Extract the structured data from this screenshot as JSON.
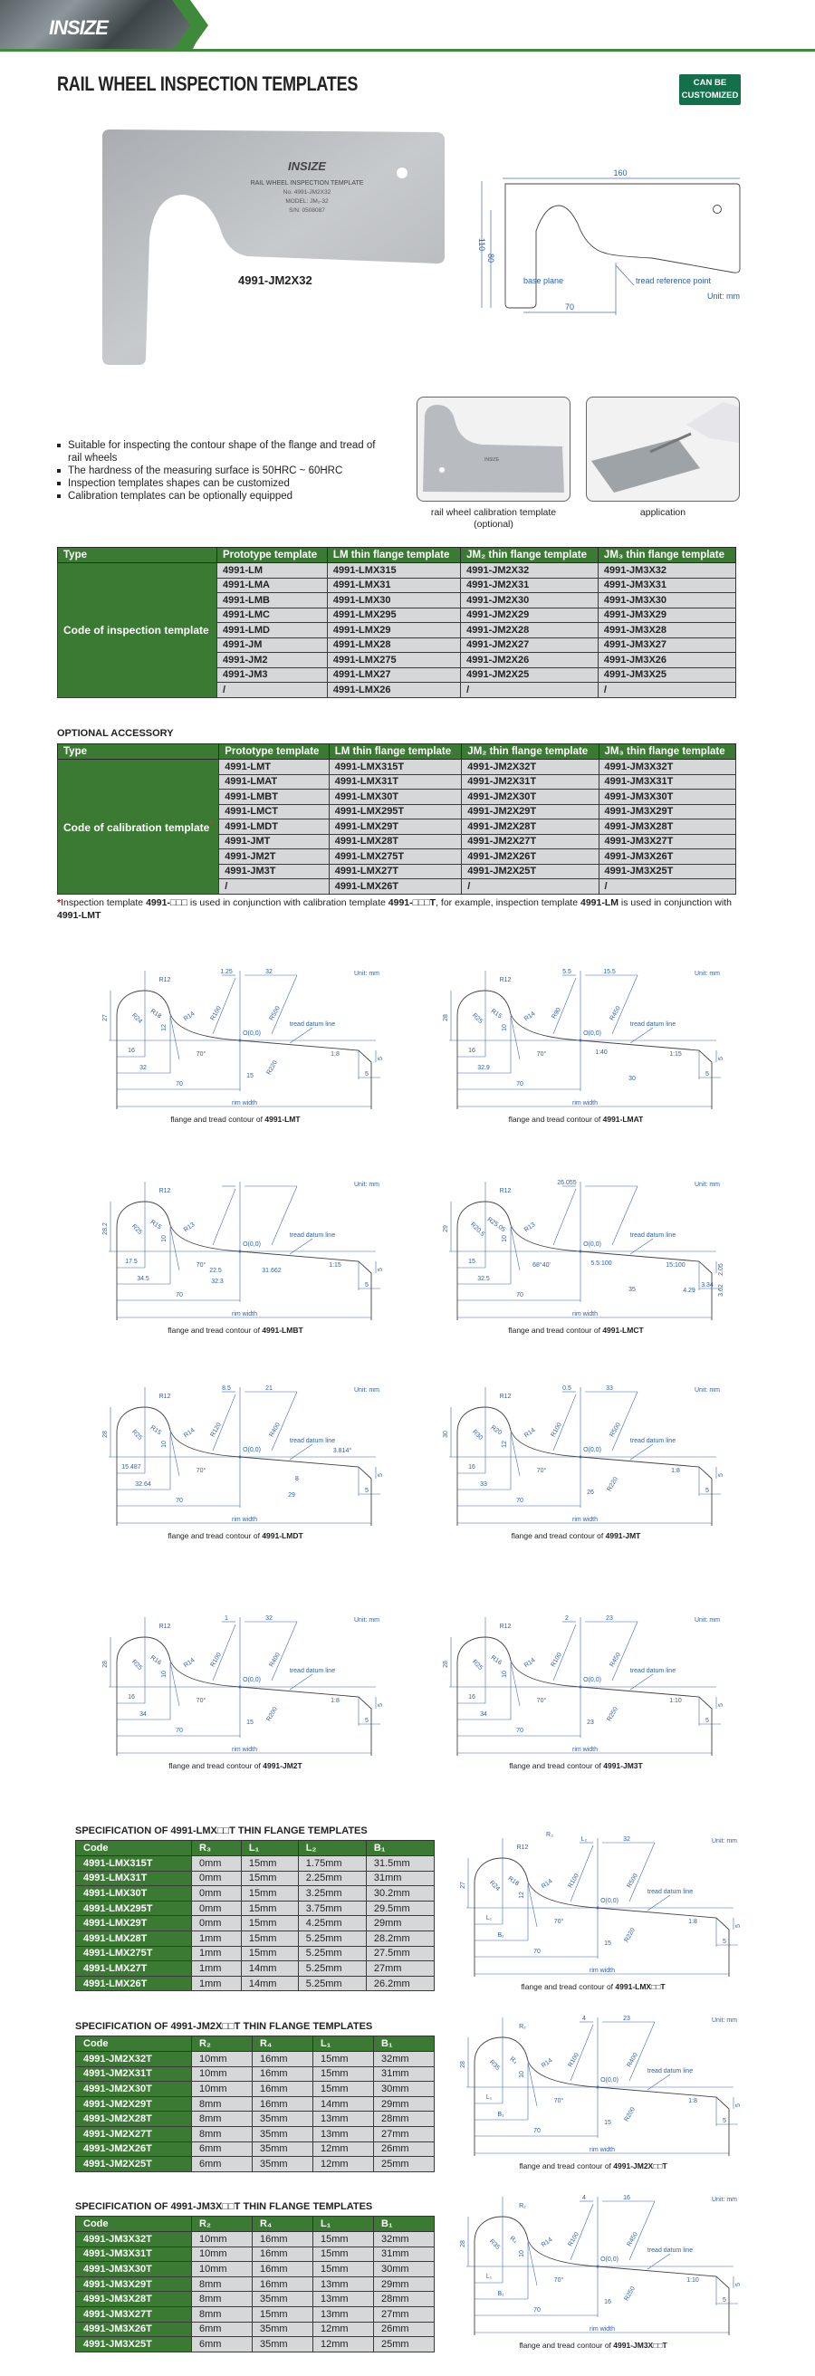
{
  "header": {
    "logo": "INSIZE",
    "accent": "#3f8a3a"
  },
  "title": "RAIL WHEEL INSPECTION TEMPLATES",
  "badge": {
    "line1": "CAN BE",
    "line2": "CUSTOMIZED",
    "color": "#13704a"
  },
  "product": {
    "model_label": "4991-JM2X32",
    "plate": {
      "logo": "INSIZE",
      "name": "RAIL WHEEL INSPECTION TEMPLATE",
      "no": "No. 4991-JM2X32",
      "model": "MODEL: JM₂-32",
      "sn": "S/N: 0508087"
    }
  },
  "drawing": {
    "width": "160",
    "height": "110",
    "inner_height": "80",
    "base": "70",
    "base_plane": "base plane",
    "tread_ref": "tread reference point",
    "unit": "Unit: mm"
  },
  "features": [
    "Suitable for inspecting the contour shape of the flange and tread of rail wheels",
    "The hardness of the measuring surface is 50HRC ~ 60HRC",
    "Inspection templates shapes can be customized",
    "Calibration templates can be optionally equipped"
  ],
  "photos": [
    {
      "caption": "rail wheel calibration template",
      "note": "(optional)"
    },
    {
      "caption": "application",
      "note": ""
    }
  ],
  "inspection_table": {
    "headers": [
      "Type",
      "Prototype template",
      "LM thin flange template",
      "JM₂ thin flange template",
      "JM₃ thin flange template"
    ],
    "type_label": "Code of inspection template",
    "rows": [
      [
        "4991-LM",
        "4991-LMX315",
        "4991-JM2X32",
        "4991-JM3X32"
      ],
      [
        "4991-LMA",
        "4991-LMX31",
        "4991-JM2X31",
        "4991-JM3X31"
      ],
      [
        "4991-LMB",
        "4991-LMX30",
        "4991-JM2X30",
        "4991-JM3X30"
      ],
      [
        "4991-LMC",
        "4991-LMX295",
        "4991-JM2X29",
        "4991-JM3X29"
      ],
      [
        "4991-LMD",
        "4991-LMX29",
        "4991-JM2X28",
        "4991-JM3X28"
      ],
      [
        "4991-JM",
        "4991-LMX28",
        "4991-JM2X27",
        "4991-JM3X27"
      ],
      [
        "4991-JM2",
        "4991-LMX275",
        "4991-JM2X26",
        "4991-JM3X26"
      ],
      [
        "4991-JM3",
        "4991-LMX27",
        "4991-JM2X25",
        "4991-JM3X25"
      ],
      [
        "/",
        "4991-LMX26",
        "/",
        "/"
      ]
    ]
  },
  "accessory": {
    "title": "OPTIONAL ACCESSORY",
    "headers": [
      "Type",
      "Prototype template",
      "LM thin flange template",
      "JM₂ thin flange template",
      "JM₃ thin flange template"
    ],
    "type_label": "Code of calibration template",
    "type_mark": "*",
    "rows": [
      [
        "4991-LMT",
        "4991-LMX315T",
        "4991-JM2X32T",
        "4991-JM3X32T"
      ],
      [
        "4991-LMAT",
        "4991-LMX31T",
        "4991-JM2X31T",
        "4991-JM3X31T"
      ],
      [
        "4991-LMBT",
        "4991-LMX30T",
        "4991-JM2X30T",
        "4991-JM3X30T"
      ],
      [
        "4991-LMCT",
        "4991-LMX295T",
        "4991-JM2X29T",
        "4991-JM3X29T"
      ],
      [
        "4991-LMDT",
        "4991-LMX29T",
        "4991-JM2X28T",
        "4991-JM3X28T"
      ],
      [
        "4991-JMT",
        "4991-LMX28T",
        "4991-JM2X27T",
        "4991-JM3X27T"
      ],
      [
        "4991-JM2T",
        "4991-LMX275T",
        "4991-JM2X26T",
        "4991-JM3X26T"
      ],
      [
        "4991-JM3T",
        "4991-LMX27T",
        "4991-JM2X25T",
        "4991-JM3X25T"
      ],
      [
        "/",
        "4991-LMX26T",
        "/",
        "/"
      ]
    ]
  },
  "note": {
    "star": "*",
    "segments": [
      {
        "t": "Inspection template ",
        "b": false
      },
      {
        "t": "4991-□□□",
        "b": true
      },
      {
        "t": " is used in conjunction with calibration template ",
        "b": false
      },
      {
        "t": "4991-□□□T",
        "b": true
      },
      {
        "t": ", for example, inspection template ",
        "b": false
      },
      {
        "t": "4991-LM",
        "b": true
      },
      {
        "t": " is used in conjunction with ",
        "b": false
      },
      {
        "t": "4991-LMT",
        "b": true
      }
    ]
  },
  "diagram_common": {
    "caption_prefix": "flange and tread contour of ",
    "unit": "Unit: mm",
    "datum": "tread datum line",
    "origin": "O(0,0)",
    "rim": "rim width"
  },
  "diagrams": [
    {
      "model": "4991-LMT",
      "labels": {
        "height": "27",
        "r_top": "R12",
        "r_left": "R24",
        "r_mid": "R18",
        "r_throat": "R14",
        "h_flange": "12",
        "angle": "70°",
        "d_left1": "16",
        "d_left2": "32",
        "d70": "70",
        "top_left": "1.25",
        "top_right": "32",
        "r_big_left": "R100",
        "r_big_right": "R500",
        "r_under": "R220",
        "d_under": "15",
        "slope": "1:8",
        "chamfer_h": "5",
        "chamfer_w": "5"
      }
    },
    {
      "model": "4991-LMAT",
      "labels": {
        "height": "28",
        "r_top": "R12",
        "r_left": "R25",
        "r_mid": "R15",
        "r_throat": "R14",
        "h_flange": "10",
        "angle": "70°",
        "d_left1": "16",
        "d_left2": "32.9",
        "d70": "70",
        "top_left": "5.5",
        "top_right": "15.5",
        "r_big_left": "R90",
        "r_big_right": "R450",
        "slope2": "1:40",
        "d_mid": "30",
        "slope": "1:15",
        "chamfer_h": "5",
        "chamfer_w": "5"
      }
    },
    {
      "model": "4991-LMBT",
      "labels": {
        "height": "28.2",
        "r_top": "R12",
        "r_left": "R25",
        "r_mid": "R15",
        "r_throat": "R13",
        "h_flange": "10",
        "angle": "70°",
        "d_left1": "17.5",
        "d_left2": "34.5",
        "d70": "70",
        "d_a": "22.5",
        "d_b": "32.3",
        "d_c": "31.662",
        "slope": "1:15",
        "chamfer_h": "5",
        "chamfer_w": "5"
      }
    },
    {
      "model": "4991-LMCT",
      "labels": {
        "height": "29",
        "r_top": "R12",
        "r_left": "R20.5",
        "r_mid": "R25.05",
        "r_throat": "R13",
        "h_flange": "10",
        "angle": "68°40'",
        "d_left1": "15",
        "d_left2": "32.5",
        "d70": "70",
        "top_left": "26.055",
        "slope2": "5.5:100",
        "slope": "15:100",
        "d_mid": "35",
        "chamfer_h": "2.05",
        "chamfer_h2": "3.62",
        "chamfer_w": "3.34",
        "chamfer_w2": "4.29"
      }
    },
    {
      "model": "4991-LMDT",
      "labels": {
        "height": "28",
        "r_top": "R12",
        "r_left": "R25",
        "r_mid": "R15",
        "r_throat": "R14",
        "h_flange": "10",
        "angle": "70°",
        "d_left1": "15.487",
        "d_left2": "32.64",
        "d70": "70",
        "top_left": "8.5",
        "top_right": "21",
        "r_big_left": "R120",
        "r_big_right": "R400",
        "d_small": "8",
        "d_mid": "29",
        "angle2": "3.814°",
        "chamfer_h": "5",
        "chamfer_w": "5"
      }
    },
    {
      "model": "4991-JMT",
      "labels": {
        "height": "30",
        "r_top": "R12",
        "r_left": "R30",
        "r_mid": "R20",
        "r_throat": "R14",
        "h_flange": "12",
        "angle": "70°",
        "d_left1": "16",
        "d_left2": "33",
        "d70": "70",
        "top_left": "0.5",
        "top_right": "33",
        "r_big_left": "R100",
        "r_big_right": "R500",
        "r_under": "R220",
        "d_under": "26",
        "slope": "1:8",
        "chamfer_h": "5",
        "chamfer_w": "5"
      }
    },
    {
      "model": "4991-JM2T",
      "labels": {
        "height": "28",
        "r_top": "R12",
        "r_left": "R25",
        "r_mid": "R16",
        "r_throat": "R14",
        "h_flange": "10",
        "angle": "70°",
        "d_left1": "16",
        "d_left2": "34",
        "d70": "70",
        "top_left": "1",
        "top_right": "32",
        "r_big_left": "R100",
        "r_big_right": "R400",
        "r_under": "R200",
        "d_under": "15",
        "slope": "1:8",
        "chamfer_h": "5",
        "chamfer_w": "5"
      }
    },
    {
      "model": "4991-JM3T",
      "labels": {
        "height": "28",
        "r_top": "R12",
        "r_left": "R25",
        "r_mid": "R16",
        "r_throat": "R14",
        "h_flange": "10",
        "angle": "70°",
        "d_left1": "16",
        "d_left2": "34",
        "d70": "70",
        "top_left": "2",
        "top_right": "23",
        "r_big_left": "R100",
        "r_big_right": "R450",
        "r_under": "R250",
        "d_under": "23",
        "slope": "1:10",
        "chamfer_h": "5",
        "chamfer_w": "5"
      }
    }
  ],
  "specs": [
    {
      "title": "SPECIFICATION  OF 4991-LMX□□T THIN FLANGE TEMPLATES",
      "headers": [
        "Code",
        "R₃",
        "L₁",
        "L₂",
        "B₁"
      ],
      "rows": [
        [
          "4991-LMX315T",
          "0mm",
          "15mm",
          "1.75mm",
          "31.5mm"
        ],
        [
          "4991-LMX31T",
          "0mm",
          "15mm",
          "2.25mm",
          "31mm"
        ],
        [
          "4991-LMX30T",
          "0mm",
          "15mm",
          "3.25mm",
          "30.2mm"
        ],
        [
          "4991-LMX295T",
          "0mm",
          "15mm",
          "3.75mm",
          "29.5mm"
        ],
        [
          "4991-LMX29T",
          "0mm",
          "15mm",
          "4.25mm",
          "29mm"
        ],
        [
          "4991-LMX28T",
          "1mm",
          "15mm",
          "5.25mm",
          "28.2mm"
        ],
        [
          "4991-LMX275T",
          "1mm",
          "15mm",
          "5.25mm",
          "27.5mm"
        ],
        [
          "4991-LMX27T",
          "1mm",
          "14mm",
          "5.25mm",
          "27mm"
        ],
        [
          "4991-LMX26T",
          "1mm",
          "14mm",
          "5.25mm",
          "26.2mm"
        ]
      ],
      "diagram": {
        "model": "4991-LMX□□T",
        "labels": {
          "height": "27",
          "r_top": "R12",
          "r_top2": "R₃",
          "r_left": "R24",
          "r_mid": "R18",
          "r_throat": "R14",
          "h_flange": "12",
          "angle": "70°",
          "d_left1": "L₁",
          "d_left2": "B₁",
          "d70": "70",
          "top_left": "L₂",
          "top_right": "32",
          "r_big_left": "R100",
          "r_big_right": "R500",
          "r_under": "R220",
          "d_under": "15",
          "slope": "1:8",
          "chamfer_h": "5",
          "chamfer_w": "5"
        }
      }
    },
    {
      "title": "SPECIFICATION  OF 4991-JM2X□□T THIN FLANGE TEMPLATES",
      "headers": [
        "Code",
        "R₂",
        "R₄",
        "L₁",
        "B₁"
      ],
      "rows": [
        [
          "4991-JM2X32T",
          "10mm",
          "16mm",
          "15mm",
          "32mm"
        ],
        [
          "4991-JM2X31T",
          "10mm",
          "16mm",
          "15mm",
          "31mm"
        ],
        [
          "4991-JM2X30T",
          "10mm",
          "16mm",
          "15mm",
          "30mm"
        ],
        [
          "4991-JM2X29T",
          "8mm",
          "16mm",
          "14mm",
          "29mm"
        ],
        [
          "4991-JM2X28T",
          "8mm",
          "35mm",
          "13mm",
          "28mm"
        ],
        [
          "4991-JM2X27T",
          "8mm",
          "35mm",
          "13mm",
          "27mm"
        ],
        [
          "4991-JM2X26T",
          "6mm",
          "35mm",
          "12mm",
          "26mm"
        ],
        [
          "4991-JM2X25T",
          "6mm",
          "35mm",
          "12mm",
          "25mm"
        ]
      ],
      "diagram": {
        "model": "4991-JM2X□□T",
        "labels": {
          "height": "28",
          "r_top": "R₂",
          "r_left": "R35",
          "r_mid": "R₄",
          "r_throat": "R14",
          "h_flange": "10",
          "angle": "70°",
          "d_left1": "L₁",
          "d_left2": "B₁",
          "d70": "70",
          "top_left": "4",
          "top_right": "23",
          "r_big_left": "R100",
          "r_big_right": "R400",
          "r_under": "R200",
          "d_under": "15",
          "slope": "1:8",
          "chamfer_h": "5",
          "chamfer_w": "5"
        }
      }
    },
    {
      "title": "SPECIFICATION OF 4991-JM3X□□T THIN FLANGE TEMPLATES",
      "headers": [
        "Code",
        "R₂",
        "R₄",
        "L₁",
        "B₁"
      ],
      "rows": [
        [
          "4991-JM3X32T",
          "10mm",
          "16mm",
          "15mm",
          "32mm"
        ],
        [
          "4991-JM3X31T",
          "10mm",
          "16mm",
          "15mm",
          "31mm"
        ],
        [
          "4991-JM3X30T",
          "10mm",
          "16mm",
          "15mm",
          "30mm"
        ],
        [
          "4991-JM3X29T",
          "8mm",
          "16mm",
          "13mm",
          "29mm"
        ],
        [
          "4991-JM3X28T",
          "8mm",
          "35mm",
          "13mm",
          "28mm"
        ],
        [
          "4991-JM3X27T",
          "8mm",
          "15mm",
          "13mm",
          "27mm"
        ],
        [
          "4991-JM3X26T",
          "6mm",
          "35mm",
          "12mm",
          "26mm"
        ],
        [
          "4991-JM3X25T",
          "6mm",
          "35mm",
          "12mm",
          "25mm"
        ]
      ],
      "diagram": {
        "model": "4991-JM3X□□T",
        "labels": {
          "height": "28",
          "r_top": "R₂",
          "r_left": "R35",
          "r_mid": "R₄",
          "r_throat": "R14",
          "h_flange": "10",
          "angle": "70°",
          "d_left1": "L₁",
          "d_left2": "B₁",
          "d70": "70",
          "top_left": "4",
          "top_right": "16",
          "r_big_left": "R100",
          "r_big_right": "R450",
          "r_under": "R250",
          "d_under": "16",
          "slope": "1:10",
          "chamfer_h": "5",
          "chamfer_w": "5"
        }
      }
    }
  ]
}
